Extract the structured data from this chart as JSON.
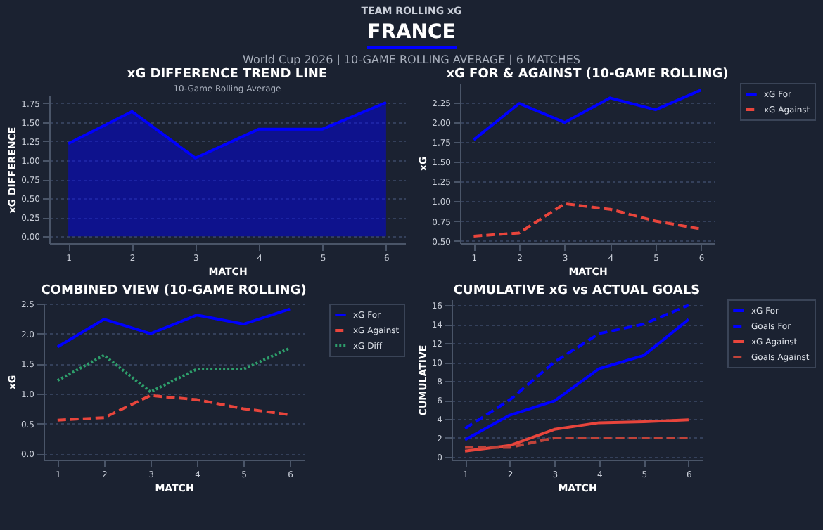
{
  "chart_data": [
    {
      "type": "other",
      "title": "FRANCE",
      "subtitle": "World Cup 2026 | 10-GAME ROLLING AVERAGE | 6 MATCHES",
      "annotations": [
        "TEAM ROLLING xG"
      ]
    },
    {
      "type": "area",
      "title": "xG DIFFERENCE TREND LINE",
      "subtitle": "10-Game Rolling Average",
      "xlabel": "MATCH",
      "ylabel": "xG DIFFERENCE",
      "x": [
        1,
        2,
        3,
        4,
        5,
        6
      ],
      "xlim": [
        0.7,
        6.3
      ],
      "xticks": [
        1,
        2,
        3,
        4,
        5,
        6
      ],
      "ylim": [
        -0.09,
        1.85
      ],
      "yticks": [
        {
          "value": 0,
          "label": "0.00"
        },
        {
          "value": 0.25,
          "label": "0.25"
        },
        {
          "value": 0.5,
          "label": "0.50"
        },
        {
          "value": 0.75,
          "label": "0.75"
        },
        {
          "value": 1,
          "label": "1.00"
        },
        {
          "value": 1.25,
          "label": "1.25"
        },
        {
          "value": 1.5,
          "label": "1.50"
        },
        {
          "value": 1.75,
          "label": "1.75"
        }
      ],
      "grid": "y",
      "legend": false,
      "series": [
        {
          "color": "#0000ff",
          "values": [
            1.22,
            1.64,
            1.03,
            1.41,
            1.41,
            1.76
          ]
        }
      ]
    },
    {
      "type": "line",
      "title": "xG FOR & AGAINST (10-GAME ROLLING)",
      "xlabel": "MATCH",
      "ylabel": "xG",
      "x": [
        1,
        2,
        3,
        4,
        5,
        6
      ],
      "xlim": [
        0.7,
        6.3
      ],
      "xticks": [
        1,
        2,
        3,
        4,
        5,
        6
      ],
      "ylim": [
        0.47,
        2.5
      ],
      "yticks": [
        {
          "value": 0.5,
          "label": "0.50"
        },
        {
          "value": 0.75,
          "label": "0.75"
        },
        {
          "value": 1,
          "label": "1.00"
        },
        {
          "value": 1.25,
          "label": "1.25"
        },
        {
          "value": 1.5,
          "label": "1.50"
        },
        {
          "value": 1.75,
          "label": "1.75"
        },
        {
          "value": 2,
          "label": "2.00"
        },
        {
          "value": 2.25,
          "label": "2.25"
        }
      ],
      "grid": "y",
      "legend": "right",
      "series": [
        {
          "name": "xG For",
          "color": "#0000ff",
          "line_style": "solid",
          "values": [
            1.78,
            2.24,
            2.0,
            2.31,
            2.16,
            2.41
          ]
        },
        {
          "name": "xG Against",
          "color": "#e8453c",
          "line_style": "dashed",
          "values": [
            0.56,
            0.6,
            0.97,
            0.9,
            0.75,
            0.65
          ]
        }
      ]
    },
    {
      "type": "line",
      "title": "COMBINED VIEW (10-GAME ROLLING)",
      "xlabel": "MATCH",
      "ylabel": "xG",
      "x": [
        1,
        2,
        3,
        4,
        5,
        6
      ],
      "xlim": [
        0.7,
        6.3
      ],
      "xticks": [
        1,
        2,
        3,
        4,
        5,
        6
      ],
      "ylim": [
        -0.1,
        2.5
      ],
      "yticks": [
        {
          "value": 0,
          "label": "0.0"
        },
        {
          "value": 0.5,
          "label": "0.5"
        },
        {
          "value": 1,
          "label": "1.0"
        },
        {
          "value": 1.5,
          "label": "1.5"
        },
        {
          "value": 2,
          "label": "2.0"
        },
        {
          "value": 2.5,
          "label": "2.5"
        }
      ],
      "grid": "y",
      "legend": "right",
      "series": [
        {
          "name": "xG For",
          "color": "#0000ff",
          "line_style": "solid",
          "values": [
            1.78,
            2.24,
            2.0,
            2.31,
            2.16,
            2.41
          ]
        },
        {
          "name": "xG Against",
          "color": "#e8453c",
          "line_style": "dashed",
          "values": [
            0.56,
            0.6,
            0.97,
            0.9,
            0.75,
            0.65
          ]
        },
        {
          "name": "xG Diff",
          "color": "#2e9e6b",
          "line_style": "dotted",
          "values": [
            1.22,
            1.64,
            1.03,
            1.41,
            1.41,
            1.76
          ]
        }
      ]
    },
    {
      "type": "line",
      "title": "CUMULATIVE xG vs ACTUAL GOALS",
      "xlabel": "MATCH",
      "ylabel": "CUMULATIVE",
      "x": [
        1,
        2,
        3,
        4,
        5,
        6
      ],
      "xlim": [
        0.7,
        6.3
      ],
      "xticks": [
        1,
        2,
        3,
        4,
        5,
        6
      ],
      "ylim": [
        -0.3,
        16.6
      ],
      "yticks": [
        0,
        2,
        4,
        6,
        8,
        10,
        12,
        14,
        16
      ],
      "grid": "y",
      "legend": "right",
      "series": [
        {
          "name": "xG For",
          "color": "#0000ff",
          "line_style": "solid",
          "values": [
            1.8,
            4.4,
            5.9,
            9.3,
            10.7,
            14.5
          ]
        },
        {
          "name": "Goals For",
          "color": "#0000ff",
          "line_style": "dashed",
          "values": [
            3,
            6,
            10,
            13,
            14,
            16
          ]
        },
        {
          "name": "xG Against",
          "color": "#e8453c",
          "line_style": "solid",
          "values": [
            0.6,
            1.2,
            2.9,
            3.6,
            3.7,
            3.9
          ]
        },
        {
          "name": "Goals Against",
          "color": "#c0433a",
          "line_style": "dashed",
          "values": [
            1,
            1,
            2,
            2,
            2,
            2
          ]
        }
      ]
    }
  ]
}
